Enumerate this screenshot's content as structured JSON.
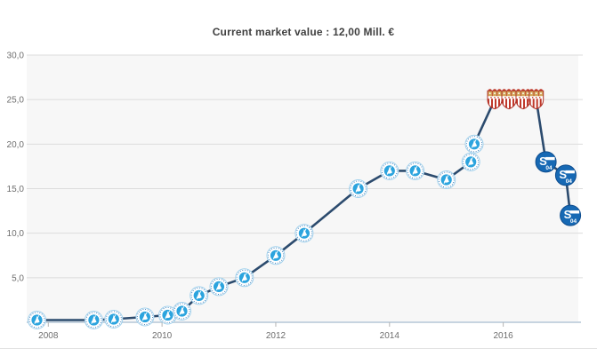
{
  "chart_style": {
    "plot_bg": "#f7f7f7",
    "grid_color": "#dcdcdc",
    "zero_axis_color": "#c7d4e0",
    "tick_color": "#b3b3b3",
    "tick_label_color": "#6e6e6e",
    "line_color": "#2c4b6e",
    "title_color": "#3f3f3f"
  },
  "badges": {
    "dnipro": {
      "name": "dnipro-club-badge",
      "primary": "#2ca4de",
      "ring": "#2a6daf",
      "bg": "#ffffff"
    },
    "sevilla": {
      "name": "sevilla-club-badge",
      "red": "#c0392b",
      "gold": "#d2a85c",
      "bg": "#ffffff"
    },
    "schalke": {
      "name": "schalke-club-badge",
      "blue": "#1769b4",
      "dark": "#0d4c8e",
      "text": "#ffffff"
    }
  },
  "chart_data": {
    "type": "line",
    "title": "Current market value : 12,00 Mill. €",
    "current_value": "12,00 Mill. €",
    "unit": "Mill. €",
    "legend_position": "none",
    "grid": "horizontal",
    "y_axis": {
      "min": 0,
      "max": 30,
      "ticks": [
        {
          "value": 30,
          "label": "30,0"
        },
        {
          "value": 25,
          "label": "25,0"
        },
        {
          "value": 20,
          "label": "20,0"
        },
        {
          "value": 15,
          "label": "15,0"
        },
        {
          "value": 10,
          "label": "10,0"
        },
        {
          "value": 5,
          "label": "5,0"
        }
      ]
    },
    "x_axis": {
      "min": 2007.62,
      "max": 2017.32,
      "ticks": [
        {
          "value": 2008,
          "label": "2008"
        },
        {
          "value": 2010,
          "label": "2010"
        },
        {
          "value": 2012,
          "label": "2012"
        },
        {
          "value": 2014,
          "label": "2014"
        },
        {
          "value": 2016,
          "label": "2016"
        }
      ]
    },
    "points": [
      {
        "year": 2007.8,
        "value": 0.25,
        "club": "dnipro"
      },
      {
        "year": 2008.8,
        "value": 0.25,
        "club": "dnipro"
      },
      {
        "year": 2009.15,
        "value": 0.35,
        "club": "dnipro"
      },
      {
        "year": 2009.7,
        "value": 0.6,
        "club": "dnipro"
      },
      {
        "year": 2010.1,
        "value": 0.8,
        "club": "dnipro"
      },
      {
        "year": 2010.35,
        "value": 1.25,
        "club": "dnipro"
      },
      {
        "year": 2010.65,
        "value": 3.0,
        "club": "dnipro"
      },
      {
        "year": 2011.0,
        "value": 4.0,
        "club": "dnipro"
      },
      {
        "year": 2011.45,
        "value": 5.0,
        "club": "dnipro"
      },
      {
        "year": 2012.0,
        "value": 7.5,
        "club": "dnipro"
      },
      {
        "year": 2012.5,
        "value": 10.0,
        "club": "dnipro"
      },
      {
        "year": 2013.45,
        "value": 15.0,
        "club": "dnipro"
      },
      {
        "year": 2014.0,
        "value": 17.0,
        "club": "dnipro"
      },
      {
        "year": 2014.45,
        "value": 17.0,
        "club": "dnipro"
      },
      {
        "year": 2015.0,
        "value": 16.0,
        "club": "dnipro"
      },
      {
        "year": 2015.43,
        "value": 18.0,
        "club": "dnipro"
      },
      {
        "year": 2015.49,
        "value": 20.0,
        "club": "dnipro"
      },
      {
        "year": 2015.85,
        "value": 25.0,
        "club": "sevilla"
      },
      {
        "year": 2016.1,
        "value": 25.0,
        "club": "sevilla"
      },
      {
        "year": 2016.35,
        "value": 25.0,
        "club": "sevilla"
      },
      {
        "year": 2016.58,
        "value": 25.0,
        "club": "sevilla"
      },
      {
        "year": 2016.75,
        "value": 18.0,
        "club": "schalke"
      },
      {
        "year": 2017.1,
        "value": 16.5,
        "club": "schalke"
      },
      {
        "year": 2017.18,
        "value": 12.0,
        "club": "schalke"
      }
    ]
  }
}
